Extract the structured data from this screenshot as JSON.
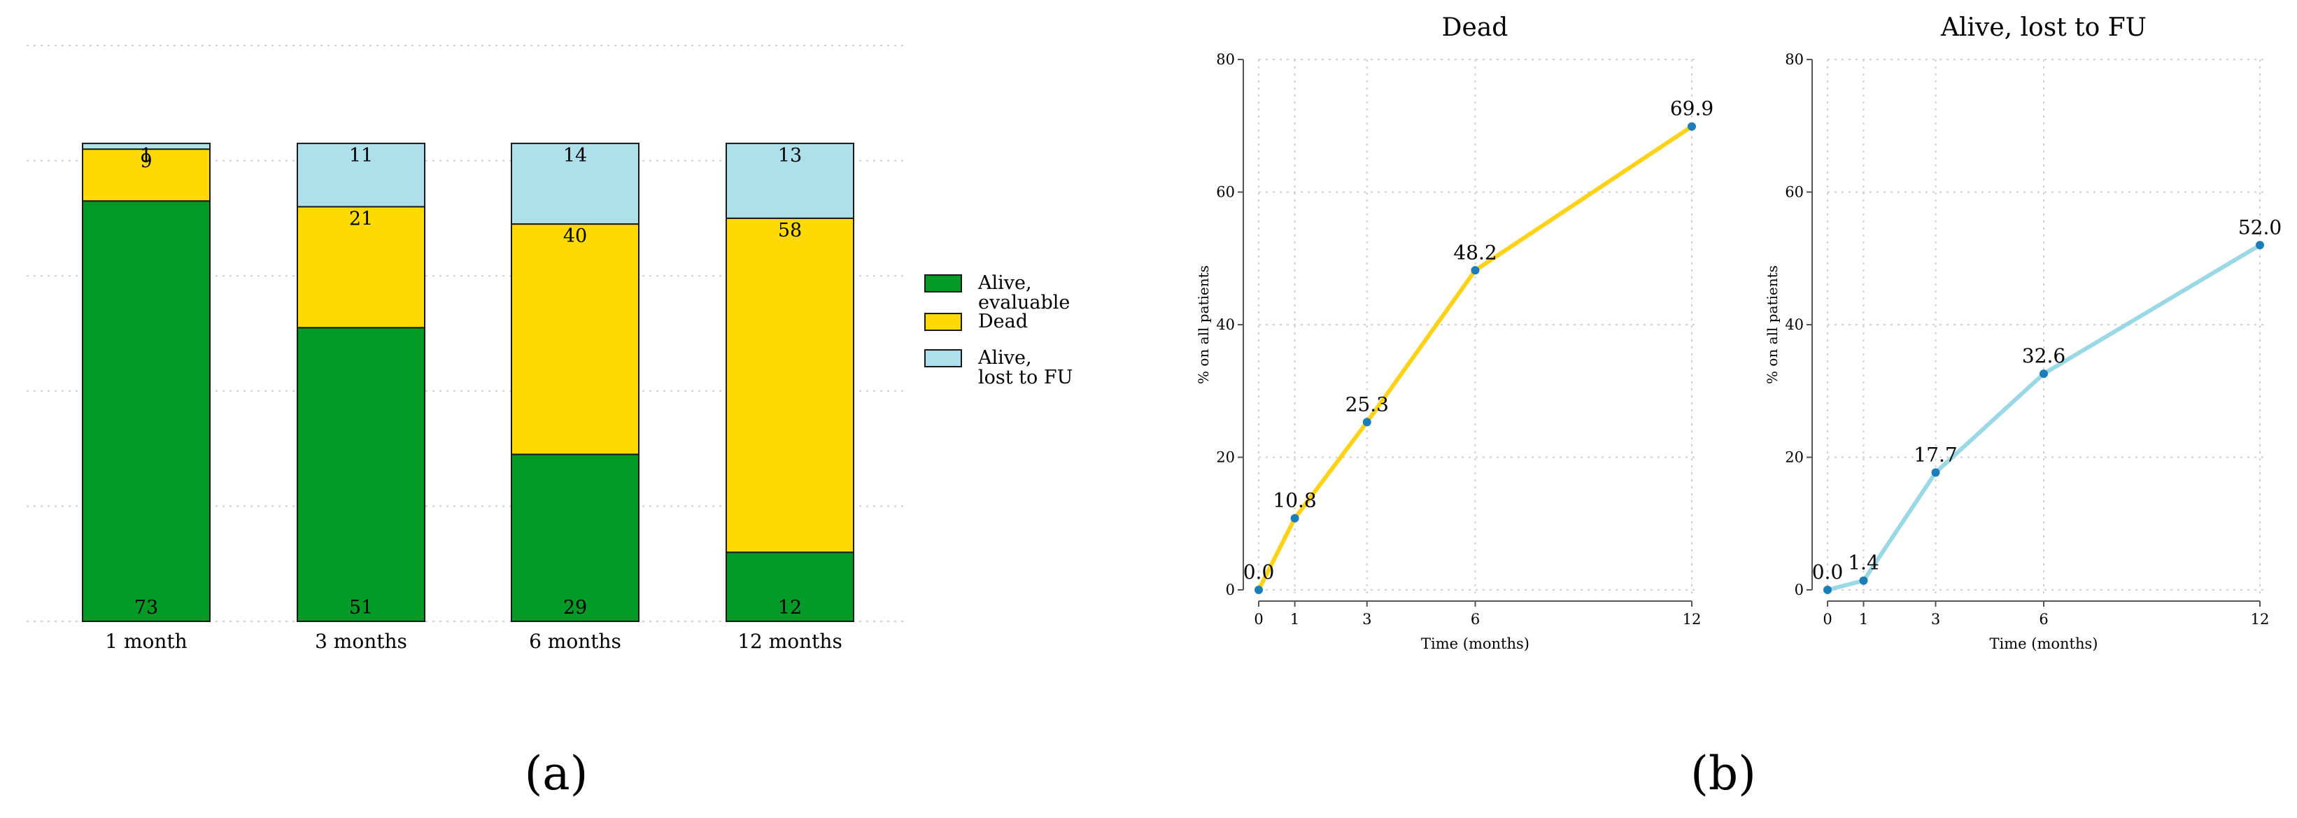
{
  "panel_labels": [
    "(a)",
    "(b)"
  ],
  "colors": {
    "alive_evaluable": "#029a26",
    "dead": "#ffda00",
    "alive_lost": "#ade0ea",
    "marker": "#1b7eb9",
    "grid": "#cfcfcf",
    "axis": "#555555"
  },
  "chart_data": [
    {
      "type": "bar",
      "stacked": true,
      "title": "",
      "categories": [
        "1 month",
        "3 months",
        "6 months",
        "12 months"
      ],
      "ylim": [
        0,
        100
      ],
      "grid": true,
      "legend_position": "right",
      "series": [
        {
          "name": "Alive, evaluable",
          "legend_lines": [
            "Alive,",
            "evaluable"
          ],
          "color": "#029a26",
          "values": [
            73,
            51,
            29,
            12
          ]
        },
        {
          "name": "Dead",
          "legend_lines": [
            "Dead"
          ],
          "color": "#ffda00",
          "values": [
            9,
            21,
            40,
            58
          ]
        },
        {
          "name": "Alive, lost to FU",
          "legend_lines": [
            "Alive,",
            "lost to FU"
          ],
          "color": "#ade0ea",
          "values": [
            1,
            11,
            14,
            13
          ]
        }
      ]
    },
    {
      "type": "line",
      "title": "Dead",
      "xlabel": "Time (months)",
      "ylabel": "% on all patients",
      "x": [
        0,
        1,
        3,
        6,
        12
      ],
      "y": [
        0.0,
        10.8,
        25.3,
        48.2,
        69.9
      ],
      "labels": [
        "0.0",
        "10.8",
        "25.3",
        "48.2",
        "69.9"
      ],
      "xticks": [
        "0",
        "1",
        "3",
        "6",
        "12"
      ],
      "yticks": [
        "0",
        "20",
        "40",
        "60",
        "80"
      ],
      "xlim": [
        0,
        12
      ],
      "ylim": [
        0,
        80
      ],
      "color": "#ffd21a",
      "grid": true
    },
    {
      "type": "line",
      "title": "Alive, lost to FU",
      "xlabel": "Time (months)",
      "ylabel": "% on all patients",
      "x": [
        0,
        1,
        3,
        6,
        12
      ],
      "y": [
        0.0,
        1.4,
        17.7,
        32.6,
        52.0
      ],
      "labels": [
        "0.0",
        "1.4",
        "17.7",
        "32.6",
        "52.0"
      ],
      "xticks": [
        "0",
        "1",
        "3",
        "6",
        "12"
      ],
      "yticks": [
        "0",
        "20",
        "40",
        "60",
        "80"
      ],
      "xlim": [
        0,
        12
      ],
      "ylim": [
        0,
        80
      ],
      "color": "#9ad8e6",
      "grid": true
    }
  ]
}
